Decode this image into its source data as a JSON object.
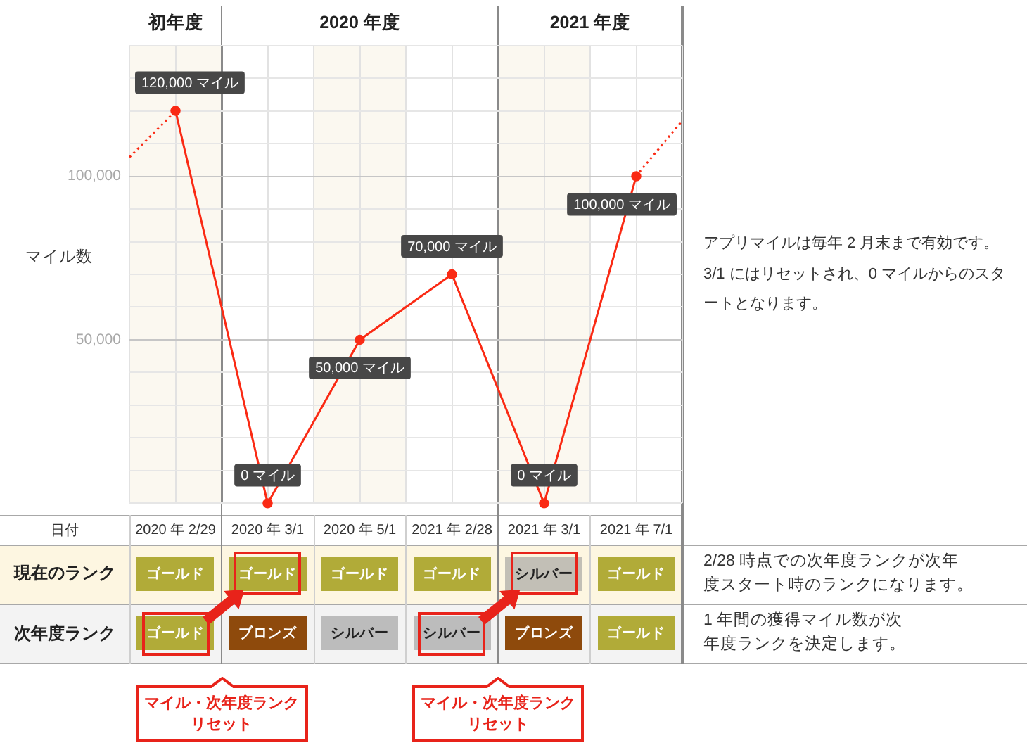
{
  "chart_data": [
    {
      "type": "other",
      "cell_labels": [
        [
          "初年度",
          "2020 年度",
          null,
          null,
          "2021 年度",
          null
        ]
      ]
    },
    {
      "type": "line",
      "ylabel": "マイル数",
      "xlabel": "日付",
      "categories": [
        "2020 年 2/29",
        "2020 年 3/1",
        "2020 年 5/1",
        "2021 年 2/28",
        "2021 年 3/1",
        "2021 年 7/1"
      ],
      "ylim": [
        0,
        140000
      ],
      "yticks": [
        {
          "value": 0,
          "label": null
        },
        {
          "value": 10000,
          "label": null
        },
        {
          "value": 20000,
          "label": null
        },
        {
          "value": 30000,
          "label": null
        },
        {
          "value": 40000,
          "label": null
        },
        {
          "value": 50000,
          "label": "50,000"
        },
        {
          "value": 60000,
          "label": null
        },
        {
          "value": 70000,
          "label": null
        },
        {
          "value": 80000,
          "label": null
        },
        {
          "value": 90000,
          "label": null
        },
        {
          "value": 100000,
          "label": "100,000"
        },
        {
          "value": 110000,
          "label": null
        },
        {
          "value": 120000,
          "label": null
        },
        {
          "value": 130000,
          "label": null
        },
        {
          "value": 140000,
          "label": null
        }
      ],
      "grid": true,
      "marker": "circle",
      "series": [
        {
          "color": "#fa2a14",
          "values": [
            120000,
            0,
            50000,
            70000,
            0,
            100000
          ],
          "value_labels": [
            "120,000 マイル",
            "0 マイル",
            "50,000 マイル",
            "70,000 マイル",
            "0 マイル",
            "100,000 マイル"
          ]
        }
      ],
      "bands": [
        {
          "axis": "x",
          "from": "2020 年 2/29",
          "to": "2020 年 2/29",
          "color": "#fbf8f0"
        },
        {
          "axis": "x",
          "from": "2020 年 5/1",
          "to": "2020 年 5/1",
          "color": "#fbf8f0"
        },
        {
          "axis": "x",
          "from": "2021 年 3/1",
          "to": "2021 年 3/1",
          "color": "#fbf8f0"
        }
      ],
      "annotations": [
        "アプリマイルは毎年 2 月末まで有効です。3/1 にはリセットされ、0 マイルからのスタートとなります。"
      ]
    },
    {
      "type": "other",
      "y_categories": [
        "現在のランク",
        "次年度ランク"
      ],
      "y2_categories": [
        "2/28 時点での次年度ランクが次年度スタート時のランクになります。",
        "1 年間の獲得マイル数が次年度ランクを決定します。"
      ],
      "cell_labels": [
        [
          "ゴールド",
          "ゴールド",
          "ゴールド",
          "ゴールド",
          "シルバー",
          "ゴールド"
        ],
        [
          "ゴールド",
          "ブロンズ",
          "シルバー",
          "シルバー",
          "ブロンズ",
          "ゴールド"
        ]
      ],
      "colors": [
        [
          "#b1ab38",
          "#b1ab38",
          "#b1ab38",
          "#b1ab38",
          "#c2bfb6",
          "#b1ab38"
        ],
        [
          "#b1ab38",
          "#8e4a0c",
          "#bcbcbc",
          "#bcbcbc",
          "#8e4a0c",
          "#b1ab38"
        ]
      ],
      "annotations": [
        "マイル・次年度ランクリセット",
        "マイル・次年度ランクリセット"
      ]
    }
  ]
}
